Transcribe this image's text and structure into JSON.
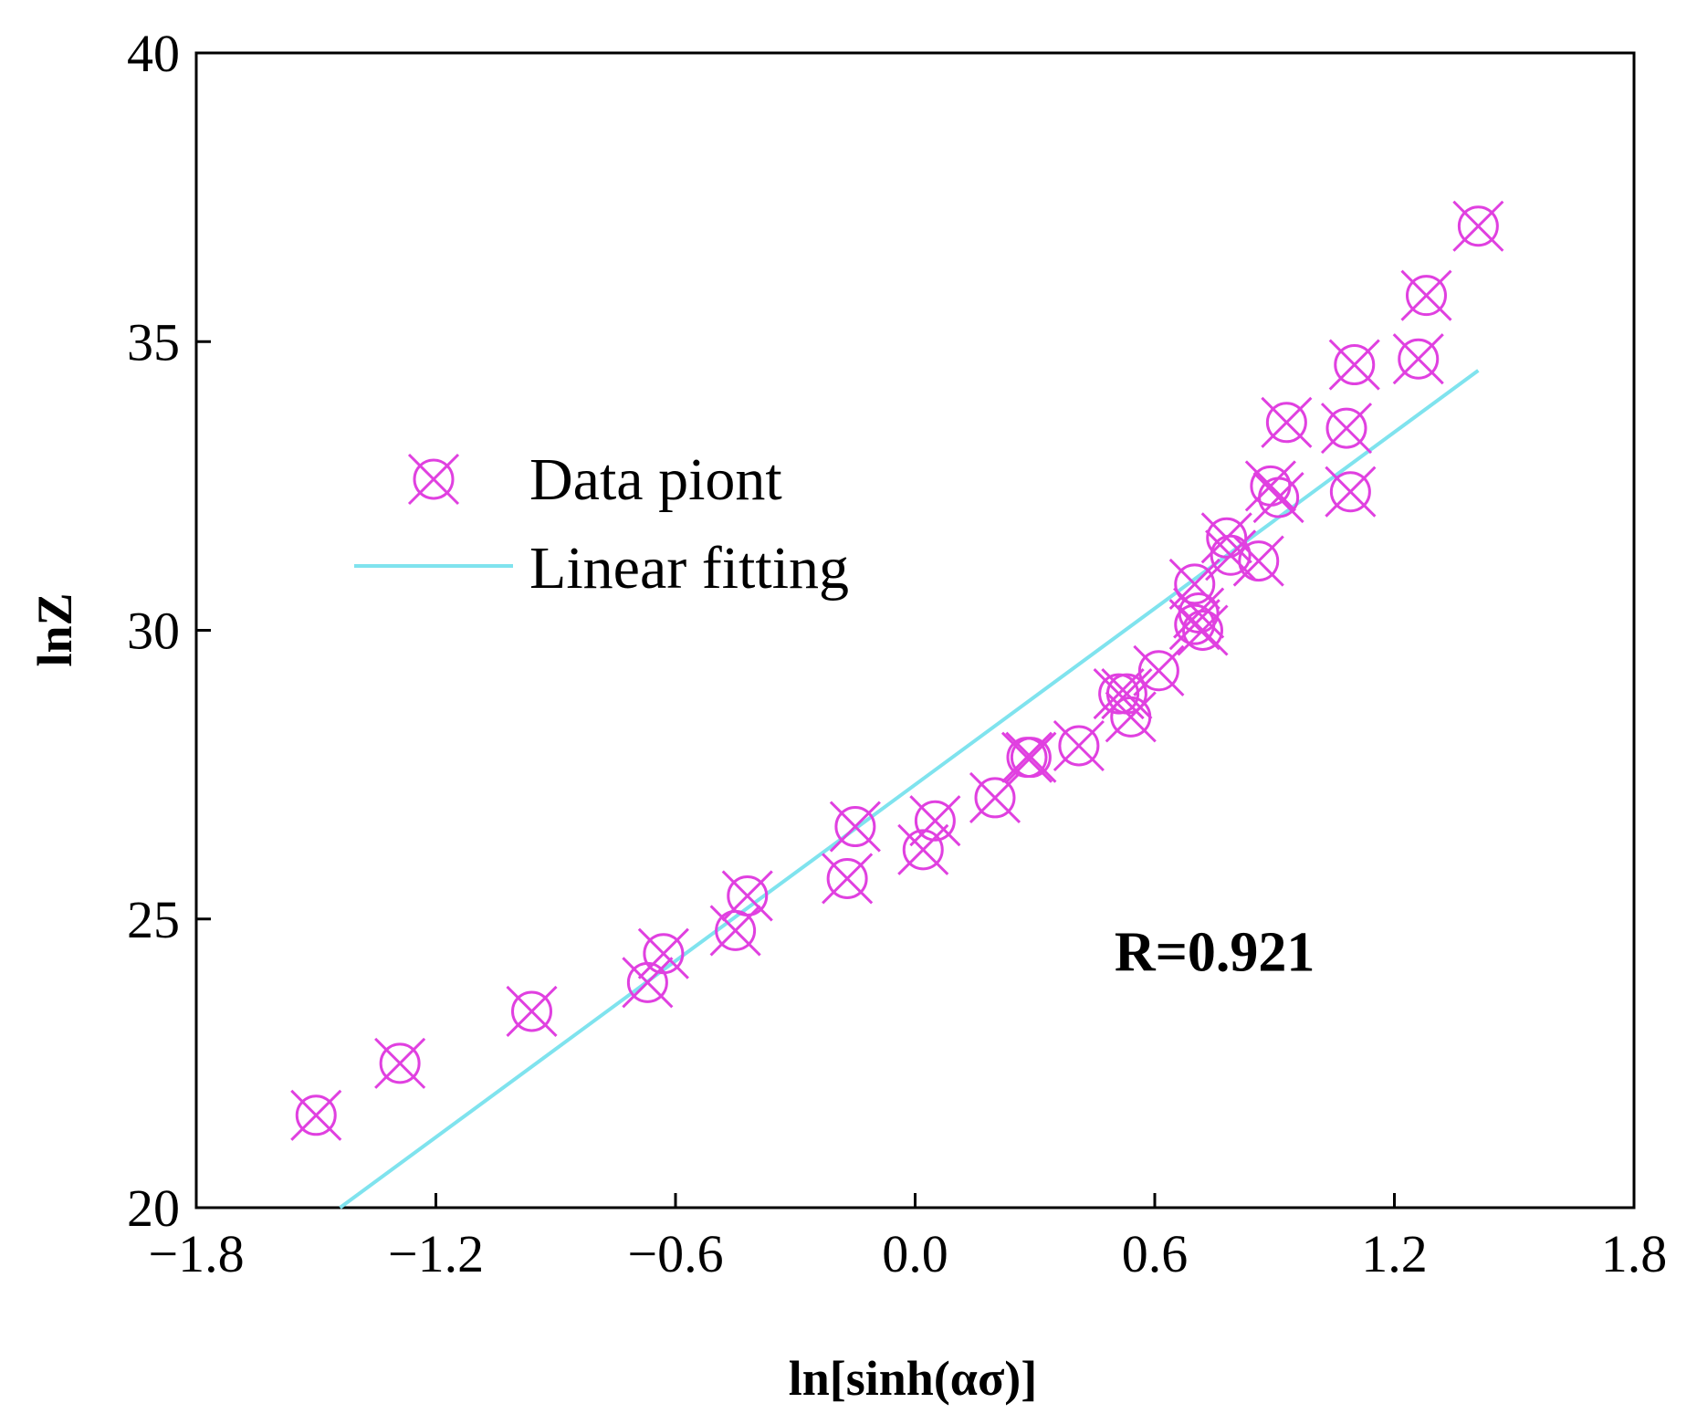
{
  "colors": {
    "marker": "#e040e0",
    "fit_line": "#7fe3ee",
    "axis": "#000000"
  },
  "chart_data": {
    "type": "scatter",
    "title": "",
    "xlabel": "ln[sinh(ασ)]",
    "ylabel": "lnZ",
    "xlim": [
      -1.8,
      1.8
    ],
    "ylim": [
      20,
      40
    ],
    "xticks": [
      -1.8,
      -1.2,
      -0.6,
      0.0,
      0.6,
      1.2,
      1.8
    ],
    "xtick_labels": [
      "−1.8",
      "−1.2",
      "−0.6",
      "0.0",
      "0.6",
      "1.2",
      "1.8"
    ],
    "yticks": [
      20,
      25,
      30,
      35,
      40
    ],
    "ytick_labels": [
      "20",
      "25",
      "30",
      "35",
      "40"
    ],
    "legend": {
      "position": "upper-left",
      "entries": [
        {
          "label": "Data piont",
          "marker": "circle-x"
        },
        {
          "label": "Linear fitting",
          "marker": "line"
        }
      ]
    },
    "annotations": [
      {
        "text": "R=0.921",
        "x": 0.75,
        "y": 24.1
      }
    ],
    "series": [
      {
        "name": "Data piont",
        "type": "scatter",
        "marker": "circle-x",
        "points": [
          [
            -1.5,
            21.6
          ],
          [
            -1.29,
            22.5
          ],
          [
            -0.96,
            23.4
          ],
          [
            -0.67,
            23.9
          ],
          [
            -0.63,
            24.4
          ],
          [
            -0.45,
            24.8
          ],
          [
            -0.42,
            25.4
          ],
          [
            -0.17,
            25.7
          ],
          [
            -0.15,
            26.6
          ],
          [
            0.02,
            26.2
          ],
          [
            0.05,
            26.7
          ],
          [
            0.2,
            27.1
          ],
          [
            0.28,
            27.8
          ],
          [
            0.29,
            27.8
          ],
          [
            0.41,
            28.0
          ],
          [
            0.51,
            28.9
          ],
          [
            0.53,
            28.9
          ],
          [
            0.54,
            28.5
          ],
          [
            0.61,
            29.3
          ],
          [
            0.7,
            30.1
          ],
          [
            0.71,
            30.3
          ],
          [
            0.72,
            30.0
          ],
          [
            0.7,
            30.8
          ],
          [
            0.78,
            31.6
          ],
          [
            0.79,
            31.3
          ],
          [
            0.86,
            31.2
          ],
          [
            0.89,
            32.5
          ],
          [
            0.91,
            32.3
          ],
          [
            0.93,
            33.6
          ],
          [
            1.08,
            33.5
          ],
          [
            1.09,
            32.4
          ],
          [
            1.1,
            34.6
          ],
          [
            1.26,
            34.7
          ],
          [
            1.28,
            35.8
          ],
          [
            1.41,
            37.0
          ]
        ]
      },
      {
        "name": "Linear fitting",
        "type": "line",
        "points": [
          [
            -1.44,
            20.0
          ],
          [
            1.41,
            34.5
          ]
        ]
      }
    ]
  }
}
